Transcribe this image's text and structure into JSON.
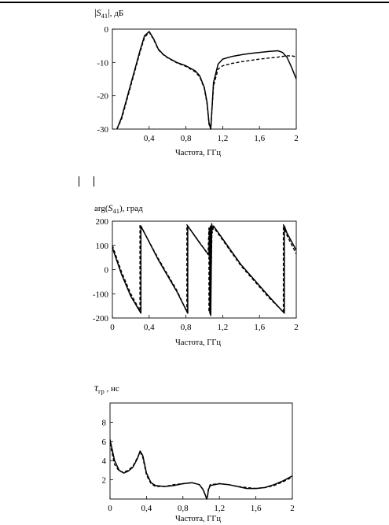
{
  "page": {
    "background": "#ffffff",
    "ink": "#000000"
  },
  "chart_data": [
    {
      "type": "line",
      "title": "|S41|, дБ",
      "ylabel_symbol": "S",
      "ylabel_subscript": "41",
      "ylabel_unit": ", дБ",
      "xlabel": "Частота, ГГц",
      "xlim": [
        0,
        2
      ],
      "ylim": [
        -30,
        0
      ],
      "x_ticks": [
        "0,4",
        "0,8",
        "1,2",
        "1,6",
        "2"
      ],
      "y_ticks": [
        "0",
        "-10",
        "-20",
        "-30"
      ],
      "grid": false,
      "series": [
        {
          "style": "solid",
          "x": [
            0.05,
            0.1,
            0.15,
            0.2,
            0.25,
            0.3,
            0.35,
            0.4,
            0.45,
            0.5,
            0.55,
            0.6,
            0.7,
            0.8,
            0.9,
            0.95,
            1.0,
            1.03,
            1.05,
            1.07,
            1.1,
            1.15,
            1.2,
            1.3,
            1.4,
            1.5,
            1.6,
            1.7,
            1.8,
            1.85,
            1.9,
            1.95,
            2.0
          ],
          "values": [
            -30,
            -26.5,
            -21.5,
            -16.5,
            -11.5,
            -6.5,
            -2.0,
            -0.7,
            -3.0,
            -6.0,
            -7.5,
            -8.5,
            -10.0,
            -11.0,
            -12.5,
            -14.0,
            -17.5,
            -22.0,
            -28.0,
            -30,
            -16.0,
            -10.5,
            -9.0,
            -8.2,
            -7.7,
            -7.3,
            -7.0,
            -6.7,
            -6.5,
            -7.0,
            -8.5,
            -11.5,
            -15.0
          ]
        },
        {
          "style": "dashed",
          "x": [
            0.05,
            0.1,
            0.15,
            0.2,
            0.25,
            0.3,
            0.35,
            0.4,
            0.45,
            0.5,
            0.55,
            0.6,
            0.7,
            0.8,
            0.9,
            0.95,
            1.0,
            1.03,
            1.05,
            1.07,
            1.1,
            1.15,
            1.2,
            1.3,
            1.4,
            1.5,
            1.6,
            1.7,
            1.8,
            1.85,
            1.9,
            1.95,
            2.0
          ],
          "values": [
            -30,
            -27.0,
            -22.0,
            -17.0,
            -12.0,
            -7.0,
            -2.5,
            -0.9,
            -3.2,
            -6.2,
            -7.6,
            -8.6,
            -10.1,
            -11.2,
            -12.8,
            -14.3,
            -17.8,
            -22.5,
            -28.5,
            -30,
            -17.0,
            -12.0,
            -11.0,
            -10.3,
            -9.8,
            -9.4,
            -9.0,
            -8.7,
            -8.4,
            -8.2,
            -8.0,
            -8.0,
            -8.3
          ]
        }
      ]
    },
    {
      "type": "line",
      "title": "arg(S41), град",
      "ylabel_prefix": "arg(",
      "ylabel_symbol": "S",
      "ylabel_subscript": "41",
      "ylabel_unit": "), град",
      "xlabel": "Частота, ГГц",
      "xlim": [
        0,
        2
      ],
      "ylim": [
        -200,
        200
      ],
      "x_ticks": [
        "0",
        "0,4",
        "0,8",
        "1,2",
        "1,6",
        "2"
      ],
      "y_ticks": [
        "200",
        "100",
        "0",
        "-100",
        "-200"
      ],
      "grid": false,
      "series": [
        {
          "style": "solid",
          "x": [
            0.0,
            0.1,
            0.2,
            0.31,
            0.31,
            0.5,
            0.7,
            0.82,
            0.82,
            0.95,
            1.05,
            1.06,
            1.06,
            1.07,
            1.07,
            1.08,
            1.08,
            1.1,
            1.4,
            1.7,
            1.87,
            1.87,
            1.9,
            2.0
          ],
          "values": [
            90,
            -20,
            -110,
            -180,
            180,
            40,
            -90,
            -180,
            180,
            110,
            60,
            170,
            -180,
            180,
            -190,
            190,
            160,
            180,
            20,
            -110,
            -180,
            180,
            150,
            80
          ]
        },
        {
          "style": "dashed",
          "x": [
            0.0,
            0.1,
            0.2,
            0.3,
            0.3,
            0.5,
            0.7,
            0.81,
            0.81,
            0.95,
            1.04,
            1.05,
            1.05,
            1.065,
            1.065,
            1.085,
            1.085,
            1.1,
            1.4,
            1.7,
            1.86,
            1.86,
            1.9,
            2.0
          ],
          "values": [
            100,
            -10,
            -100,
            -170,
            185,
            45,
            -85,
            -175,
            185,
            112,
            62,
            172,
            -175,
            182,
            -185,
            185,
            150,
            175,
            15,
            -115,
            -175,
            185,
            140,
            65
          ]
        }
      ]
    },
    {
      "type": "line",
      "title": "τгр , нс",
      "ylabel_symbol": "τ",
      "ylabel_subscript": "гр",
      "ylabel_unit": " , нс",
      "xlabel": "Частота, ГГц",
      "xlim": [
        0,
        2
      ],
      "ylim": [
        0,
        10
      ],
      "x_ticks": [
        "0",
        "0,4",
        "0,8",
        "1,2",
        "1,6",
        "2"
      ],
      "y_ticks": [
        "2",
        "4",
        "6",
        "8"
      ],
      "grid": false,
      "series": [
        {
          "style": "solid",
          "x": [
            0.0,
            0.05,
            0.1,
            0.15,
            0.2,
            0.25,
            0.3,
            0.33,
            0.36,
            0.4,
            0.45,
            0.5,
            0.6,
            0.7,
            0.8,
            0.9,
            0.98,
            1.02,
            1.05,
            1.06,
            1.07,
            1.08,
            1.1,
            1.2,
            1.3,
            1.4,
            1.5,
            1.6,
            1.7,
            1.8,
            1.9,
            2.0
          ],
          "values": [
            6.2,
            4.0,
            3.0,
            2.7,
            2.9,
            3.3,
            4.2,
            5.0,
            4.5,
            2.7,
            1.7,
            1.4,
            1.3,
            1.4,
            1.6,
            1.7,
            1.5,
            1.0,
            0.3,
            0.0,
            0.3,
            1.0,
            1.4,
            1.6,
            1.5,
            1.3,
            1.1,
            1.1,
            1.2,
            1.5,
            1.9,
            2.4
          ]
        },
        {
          "style": "dashed",
          "x": [
            0.0,
            0.05,
            0.1,
            0.15,
            0.2,
            0.25,
            0.3,
            0.33,
            0.36,
            0.4,
            0.45,
            0.5,
            0.6,
            0.7,
            0.8,
            0.9,
            0.98,
            1.02,
            1.05,
            1.06,
            1.07,
            1.08,
            1.1,
            1.2,
            1.3,
            1.4,
            1.5,
            1.6,
            1.7,
            1.8,
            1.9,
            2.0
          ],
          "values": [
            5.8,
            3.6,
            2.9,
            2.8,
            3.0,
            3.4,
            4.3,
            4.9,
            4.3,
            2.5,
            1.6,
            1.3,
            1.3,
            1.5,
            1.6,
            1.7,
            1.5,
            1.0,
            0.3,
            0.0,
            0.3,
            1.1,
            1.5,
            1.6,
            1.5,
            1.3,
            1.2,
            1.1,
            1.2,
            1.4,
            1.8,
            2.3
          ]
        }
      ]
    }
  ]
}
